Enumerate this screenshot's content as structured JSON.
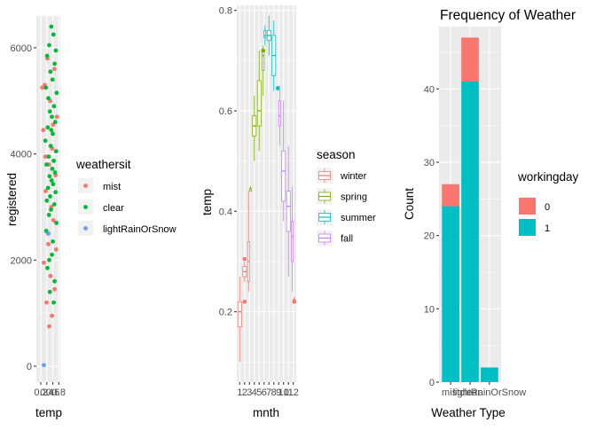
{
  "chart_data": [
    {
      "type": "scatter",
      "title": "",
      "xlabel": "temp",
      "ylabel": "registered",
      "legend_title": "weathersit",
      "legend_position": "right",
      "grid": true,
      "xlim": [
        0.05,
        0.85
      ],
      "ylim": [
        -300,
        6600
      ],
      "x_ticks": [
        {
          "value": 0.2,
          "label": "0.2"
        },
        {
          "value": 0.4,
          "label": "0.4"
        },
        {
          "value": 0.6,
          "label": "0.6"
        },
        {
          "value": 0.8,
          "label": "0.8"
        }
      ],
      "y_ticks": [
        0,
        2000,
        4000,
        6000
      ],
      "series": [
        {
          "name": "mist",
          "color": "#F8766D",
          "x": [
            0.42,
            0.65,
            0.33,
            0.51,
            0.74,
            0.28,
            0.58,
            0.47,
            0.69,
            0.36,
            0.55,
            0.62,
            0.44,
            0.71,
            0.3,
            0.52,
            0.66,
            0.39,
            0.57,
            0.48,
            0.25,
            0.61,
            0.35,
            0.45
          ],
          "y": [
            5800,
            5600,
            5300,
            5000,
            4700,
            4450,
            4100,
            3800,
            3600,
            3300,
            3000,
            2750,
            2500,
            2200,
            1950,
            1700,
            1450,
            1200,
            950,
            750,
            5250,
            4550,
            3950,
            2300
          ]
        },
        {
          "name": "clear",
          "color": "#00BA38",
          "x": [
            0.55,
            0.62,
            0.48,
            0.7,
            0.41,
            0.66,
            0.52,
            0.59,
            0.37,
            0.73,
            0.45,
            0.64,
            0.5,
            0.57,
            0.68,
            0.43,
            0.6,
            0.35,
            0.53,
            0.71,
            0.46,
            0.63,
            0.39,
            0.58,
            0.67,
            0.49,
            0.56,
            0.61,
            0.44,
            0.69,
            0.51,
            0.4,
            0.65,
            0.54,
            0.47,
            0.72,
            0.38,
            0.6,
            0.57,
            0.42,
            0.66,
            0.5,
            0.63,
            0.48,
            0.55
          ],
          "y": [
            6400,
            6250,
            6050,
            5950,
            5850,
            5700,
            5550,
            5400,
            5250,
            5150,
            5050,
            4900,
            4800,
            4700,
            4600,
            4500,
            4380,
            4250,
            4150,
            4050,
            3950,
            3870,
            3800,
            3720,
            3650,
            3580,
            3500,
            3430,
            3360,
            3280,
            3200,
            3120,
            3050,
            2950,
            2850,
            2700,
            2550,
            2350,
            2100,
            1850,
            1600,
            1400,
            1200,
            2000,
            4450
          ]
        },
        {
          "name": "lightRainOrSnow",
          "color": "#619CFF",
          "x": [
            0.45,
            0.3
          ],
          "y": [
            2500,
            20
          ]
        }
      ]
    },
    {
      "type": "box",
      "title": "",
      "xlabel": "mnth",
      "ylabel": "temp",
      "legend_title": "season",
      "legend_position": "right",
      "grid": true,
      "ylim": [
        0.06,
        0.81
      ],
      "y_ticks": [
        0.2,
        0.4,
        0.6,
        0.8
      ],
      "categories": [
        "1",
        "2",
        "3",
        "4",
        "5",
        "6",
        "7",
        "8",
        "9",
        "10",
        "11",
        "12"
      ],
      "seasons": [
        {
          "name": "winter",
          "color": "#F8766D"
        },
        {
          "name": "spring",
          "color": "#7CAE00"
        },
        {
          "name": "summer",
          "color": "#00BFC4"
        },
        {
          "name": "fall",
          "color": "#C77CFF"
        }
      ],
      "boxes": [
        {
          "month": 1,
          "season": "winter",
          "min": 0.1,
          "q1": 0.17,
          "median": 0.2,
          "q3": 0.22,
          "max": 0.27,
          "outliers": []
        },
        {
          "month": 2,
          "season": "winter",
          "min": 0.26,
          "q1": 0.27,
          "median": 0.28,
          "q3": 0.29,
          "max": 0.3,
          "outliers": [
            0.22,
            0.305
          ]
        },
        {
          "month": 3,
          "season": "winter",
          "min": 0.24,
          "q1": 0.26,
          "median": 0.3,
          "q3": 0.34,
          "max": 0.44,
          "outliers": []
        },
        {
          "month": 3,
          "season": "spring",
          "min": 0.44,
          "q1": 0.44,
          "median": 0.445,
          "q3": 0.445,
          "max": 0.45,
          "outliers": []
        },
        {
          "month": 4,
          "season": "spring",
          "min": 0.5,
          "q1": 0.55,
          "median": 0.57,
          "q3": 0.59,
          "max": 0.63,
          "outliers": []
        },
        {
          "month": 5,
          "season": "spring",
          "min": 0.52,
          "q1": 0.57,
          "median": 0.6,
          "q3": 0.66,
          "max": 0.72,
          "outliers": []
        },
        {
          "month": 6,
          "season": "spring",
          "min": 0.63,
          "q1": 0.68,
          "median": 0.71,
          "q3": 0.72,
          "max": 0.73,
          "outliers": [
            0.72
          ]
        },
        {
          "month": 6,
          "season": "summer",
          "min": 0.73,
          "q1": 0.745,
          "median": 0.75,
          "q3": 0.76,
          "max": 0.77,
          "outliers": []
        },
        {
          "month": 7,
          "season": "summer",
          "min": 0.71,
          "q1": 0.74,
          "median": 0.75,
          "q3": 0.76,
          "max": 0.79,
          "outliers": []
        },
        {
          "month": 8,
          "season": "summer",
          "min": 0.64,
          "q1": 0.67,
          "median": 0.71,
          "q3": 0.75,
          "max": 0.78,
          "outliers": []
        },
        {
          "month": 9,
          "season": "summer",
          "min": 0.64,
          "q1": 0.645,
          "median": 0.645,
          "q3": 0.645,
          "max": 0.65,
          "outliers": [
            0.645
          ]
        },
        {
          "month": 9,
          "season": "fall",
          "min": 0.53,
          "q1": 0.57,
          "median": 0.59,
          "q3": 0.62,
          "max": 0.65,
          "outliers": []
        },
        {
          "month": 10,
          "season": "fall",
          "min": 0.38,
          "q1": 0.42,
          "median": 0.48,
          "q3": 0.52,
          "max": 0.62,
          "outliers": []
        },
        {
          "month": 11,
          "season": "fall",
          "min": 0.27,
          "q1": 0.36,
          "median": 0.41,
          "q3": 0.44,
          "max": 0.53,
          "outliers": []
        },
        {
          "month": 12,
          "season": "fall",
          "min": 0.24,
          "q1": 0.3,
          "median": 0.35,
          "q3": 0.38,
          "max": 0.45,
          "outliers": []
        },
        {
          "month": 12,
          "season": "winter",
          "min": 0.22,
          "q1": 0.22,
          "median": 0.225,
          "q3": 0.225,
          "max": 0.23,
          "outliers": [
            0.22
          ]
        }
      ]
    },
    {
      "type": "bar",
      "stacked": true,
      "title": "Frequency of Weather",
      "xlabel": "Weather Type",
      "ylabel": "Count",
      "legend_title": "workingday",
      "legend_position": "right",
      "grid": true,
      "ylim": [
        0,
        48.5
      ],
      "y_ticks": [
        0,
        10,
        20,
        30,
        40
      ],
      "categories": [
        "mist",
        "clear",
        "lightRainOrSnow"
      ],
      "series": [
        {
          "name": "0",
          "color": "#F8766D",
          "values": [
            3,
            6,
            0
          ]
        },
        {
          "name": "1",
          "color": "#00BFC4",
          "values": [
            24,
            41,
            2
          ]
        }
      ]
    }
  ]
}
